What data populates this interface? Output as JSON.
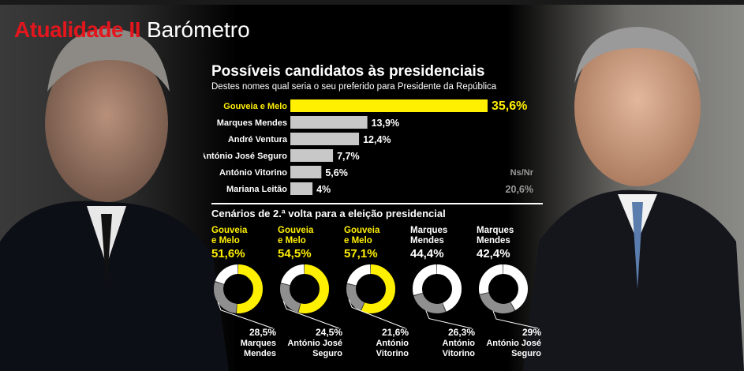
{
  "header": {
    "kicker": "Atualidade II",
    "section": "Barómetro"
  },
  "title": "Possíveis candidatos às presidenciais",
  "subtitle": "Destes nomes qual seria o seu preferido para Presidente da República",
  "colors": {
    "highlight": "#ffef00",
    "bar": "#c8c8c8",
    "ring_gray": "#8f8f8f",
    "ring_white": "#ffffff",
    "kicker_red": "#e3161d"
  },
  "chart_data": [
    {
      "type": "bar",
      "orientation": "horizontal",
      "categories": [
        "Gouveia e Melo",
        "Marques Mendes",
        "André Ventura",
        "António José Seguro",
        "António Vitorino",
        "Mariana Leitão"
      ],
      "values": [
        35.6,
        13.9,
        12.4,
        7.7,
        5.6,
        4
      ],
      "value_labels": [
        "35,6%",
        "13,9%",
        "12,4%",
        "7,7%",
        "5,6%",
        "4%"
      ],
      "highlight_index": 0,
      "extra_label": "Ns/Nr",
      "extra_value": 20.6,
      "extra_value_label": "20,6%"
    },
    {
      "type": "pie",
      "title": "Cenários de 2.ª volta para a eleição presidencial",
      "scenarios": [
        {
          "winner": "Gouveia e Melo",
          "winner_value": 51.6,
          "winner_label": "51,6%",
          "loser": "Marques Mendes",
          "loser_value": 28.5,
          "loser_label": "28,5%",
          "winner_color": "#ffef00"
        },
        {
          "winner": "Gouveia e Melo",
          "winner_value": 54.5,
          "winner_label": "54,5%",
          "loser": "António José Seguro",
          "loser_value": 24.5,
          "loser_label": "24,5%",
          "winner_color": "#ffef00"
        },
        {
          "winner": "Gouveia e Melo",
          "winner_value": 57.1,
          "winner_label": "57,1%",
          "loser": "António Vitorino",
          "loser_value": 21.6,
          "loser_label": "21,6%",
          "winner_color": "#ffef00"
        },
        {
          "winner": "Marques Mendes",
          "winner_value": 44.4,
          "winner_label": "44,4%",
          "loser": "António Vitorino",
          "loser_value": 26.3,
          "loser_label": "26,3%",
          "winner_color": "#ffffff"
        },
        {
          "winner": "Marques Mendes",
          "winner_value": 42.4,
          "winner_label": "42,4%",
          "loser": "António José Seguro",
          "loser_value": 29,
          "loser_label": "29%",
          "winner_color": "#ffffff"
        }
      ]
    }
  ]
}
